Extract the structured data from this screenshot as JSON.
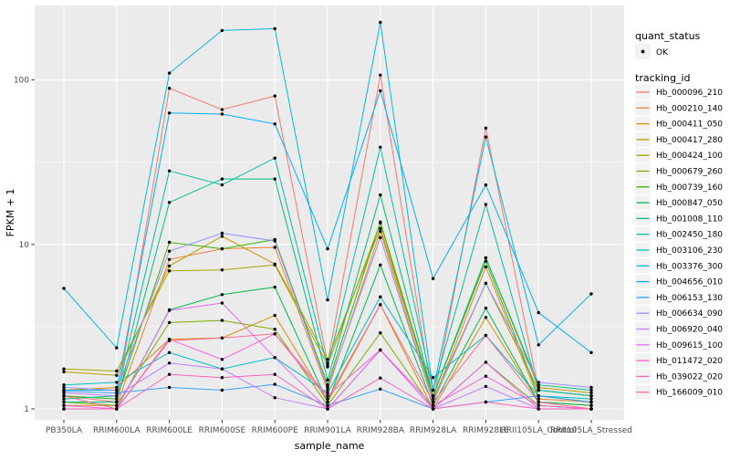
{
  "chart_data": {
    "type": "line",
    "title": "",
    "xlabel": "sample_name",
    "ylabel": "FPKM + 1",
    "y_scale": "log10",
    "y_ticks": [
      1,
      10,
      100
    ],
    "y_minor_ticks": [
      3.1623,
      31.623
    ],
    "ylim": [
      0.86,
      285
    ],
    "grid": true,
    "legend_position": "right",
    "point_marker": "filled-black-dot",
    "categories": [
      "PB350LA",
      "RRIM600LA",
      "RRIM600LE",
      "RRIM600SE",
      "RRIM600PE",
      "RRIM901LA",
      "RRIM928BA",
      "RRIM928LA",
      "RRIM928LE",
      "RRII105LA_Control",
      "RRII105LA_Stressed"
    ],
    "series": [
      {
        "name": "Hb_000096_210",
        "color": "#F8766D",
        "values": [
          1.2,
          1.1,
          89,
          66,
          80,
          1.9,
          107,
          1.1,
          51,
          1.3,
          1.2
        ]
      },
      {
        "name": "Hb_000210_140",
        "color": "#EA8331",
        "values": [
          1.05,
          1.05,
          8.1,
          9.4,
          9.6,
          1.3,
          12.0,
          1.1,
          7.3,
          1.15,
          1.1
        ]
      },
      {
        "name": "Hb_000411_050",
        "color": "#D89000",
        "values": [
          1.3,
          1.35,
          2.65,
          2.7,
          3.7,
          1.1,
          4.3,
          1.0,
          3.6,
          1.1,
          1.05
        ]
      },
      {
        "name": "Hb_000417_280",
        "color": "#C09B00",
        "values": [
          1.68,
          1.6,
          7.4,
          11.2,
          7.6,
          2.0,
          12.5,
          1.2,
          8.3,
          1.35,
          1.25
        ]
      },
      {
        "name": "Hb_000424_100",
        "color": "#A3A500",
        "values": [
          1.75,
          1.7,
          6.9,
          7.0,
          7.5,
          1.85,
          13.5,
          1.15,
          5.8,
          1.3,
          1.2
        ]
      },
      {
        "name": "Hb_000679_260",
        "color": "#7CAE00",
        "values": [
          1.1,
          1.05,
          3.35,
          3.45,
          3.05,
          1.05,
          2.9,
          1.0,
          1.92,
          1.05,
          1.0
        ]
      },
      {
        "name": "Hb_000739_160",
        "color": "#39B600",
        "values": [
          1.2,
          1.15,
          10.3,
          9.4,
          10.7,
          1.4,
          13.7,
          1.2,
          7.9,
          1.2,
          1.1
        ]
      },
      {
        "name": "Hb_000847_050",
        "color": "#00BB4E",
        "values": [
          1.0,
          1.0,
          4.0,
          4.95,
          5.5,
          1.1,
          7.5,
          1.05,
          4.1,
          1.1,
          1.05
        ]
      },
      {
        "name": "Hb_001008_110",
        "color": "#00BF7D",
        "values": [
          1.1,
          1.1,
          18,
          25,
          25,
          1.5,
          20,
          1.2,
          8.3,
          1.4,
          1.3
        ]
      },
      {
        "name": "Hb_002450_180",
        "color": "#00C1A3",
        "values": [
          1.15,
          1.2,
          28,
          23,
          33.5,
          1.8,
          39,
          1.3,
          17.5,
          1.3,
          1.2
        ]
      },
      {
        "name": "Hb_003106_230",
        "color": "#00BFC4",
        "values": [
          1.4,
          1.45,
          2.2,
          1.75,
          2.05,
          1.25,
          4.8,
          1.55,
          2.8,
          1.2,
          1.15
        ]
      },
      {
        "name": "Hb_003376_300",
        "color": "#00BAE0",
        "values": [
          5.4,
          2.35,
          110,
          200,
          205,
          4.6,
          224,
          1.3,
          45,
          2.45,
          5.0
        ]
      },
      {
        "name": "Hb_004656_010",
        "color": "#00B0F6",
        "values": [
          1.3,
          1.3,
          63,
          62,
          54,
          9.4,
          86,
          6.2,
          23,
          3.85,
          2.2
        ]
      },
      {
        "name": "Hb_006153_130",
        "color": "#35A2FF",
        "values": [
          1.28,
          1.25,
          1.35,
          1.3,
          1.41,
          1.05,
          1.32,
          1.0,
          1.1,
          1.2,
          1.1
        ]
      },
      {
        "name": "Hb_006634_090",
        "color": "#9590FF",
        "values": [
          1.35,
          1.3,
          9.1,
          11.7,
          10.5,
          1.35,
          11.0,
          1.1,
          5.8,
          1.45,
          1.35
        ]
      },
      {
        "name": "Hb_006920_040",
        "color": "#C77CFF",
        "values": [
          1.25,
          1.2,
          1.9,
          1.75,
          1.17,
          1.0,
          2.28,
          1.0,
          1.37,
          1.0,
          1.0
        ]
      },
      {
        "name": "Hb_009615_100",
        "color": "#E76BF3",
        "values": [
          1.0,
          1.0,
          3.97,
          4.4,
          2.05,
          1.0,
          2.28,
          1.0,
          1.92,
          1.0,
          1.0
        ]
      },
      {
        "name": "Hb_011472_020",
        "color": "#FA62DB",
        "values": [
          1.05,
          1.0,
          2.65,
          2.0,
          2.86,
          1.2,
          2.28,
          1.05,
          1.58,
          1.05,
          1.0
        ]
      },
      {
        "name": "Hb_039022_020",
        "color": "#FF62BC",
        "values": [
          1.0,
          1.0,
          1.62,
          1.55,
          1.62,
          1.0,
          1.54,
          1.0,
          1.1,
          1.0,
          1.0
        ]
      },
      {
        "name": "Hb_166009_010",
        "color": "#FF6A98",
        "values": [
          1.2,
          1.0,
          2.6,
          2.7,
          2.86,
          1.15,
          4.3,
          1.1,
          2.8,
          1.1,
          1.0
        ]
      }
    ]
  },
  "legend": {
    "quant_status_title": "quant_status",
    "quant_status_items": [
      {
        "label": "OK",
        "marker": "point"
      }
    ],
    "tracking_title": "tracking_id"
  },
  "colors": {
    "background": "#FFFFFF",
    "panel_bg": "#EBEBEB",
    "grid_major": "#FFFFFF",
    "grid_minor": "#FFFFFF",
    "legend_key_bg": "#F2F2F2",
    "tick_label": "#4D4D4D",
    "tick_mark": "#333333",
    "point": "#000000"
  }
}
